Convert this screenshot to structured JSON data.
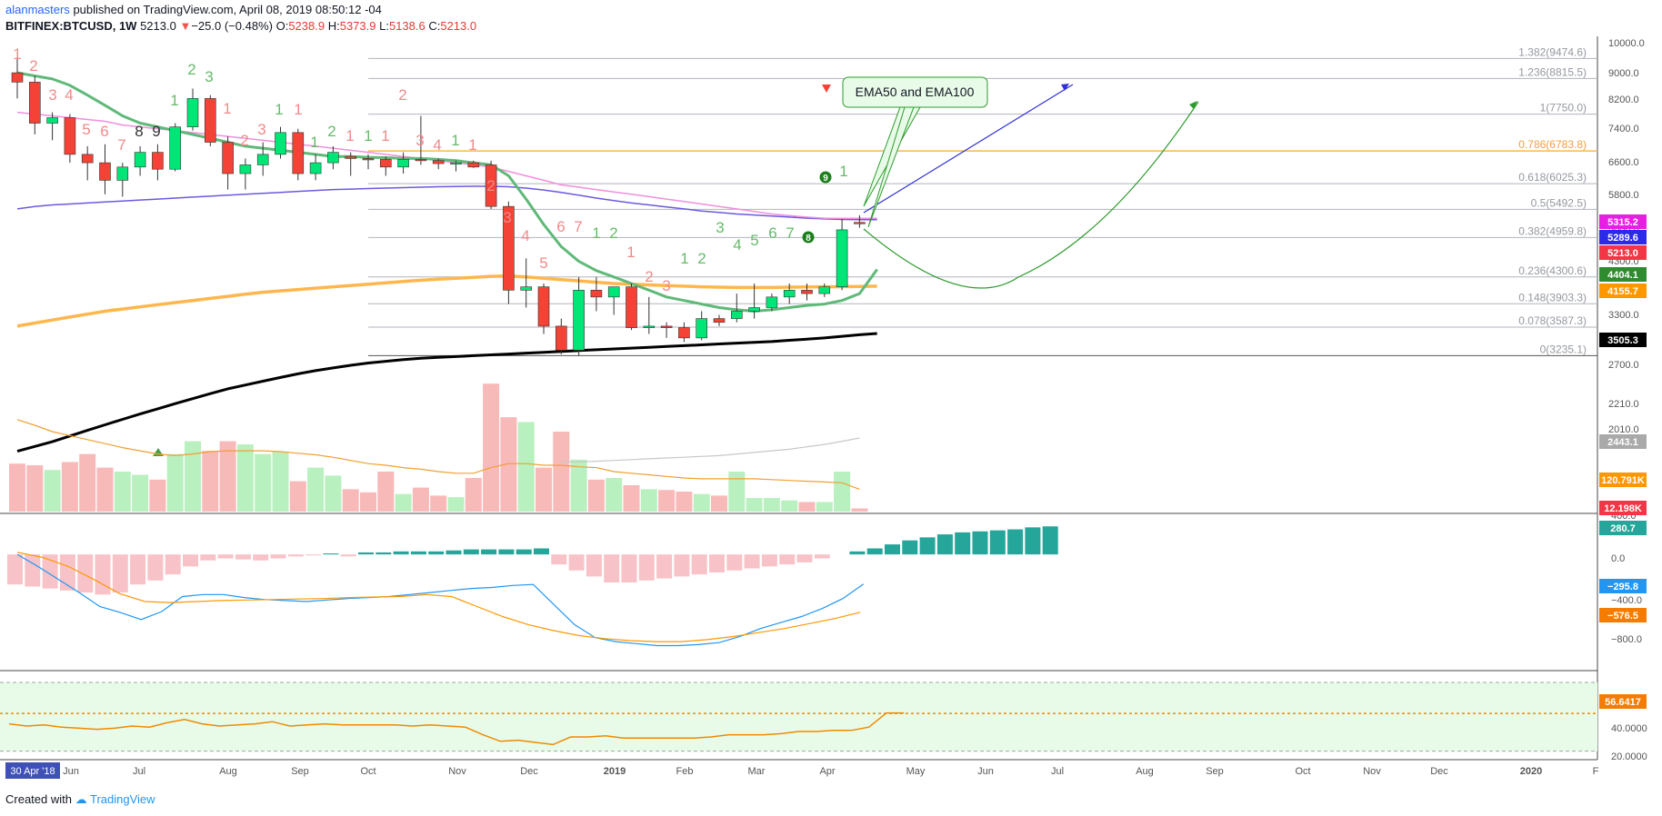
{
  "header": {
    "line1_user": "alanmasters",
    "line1_rest": "published on TradingView.com, April 08, 2019 08:50:12 -04",
    "symbol": "BITFINEX:BTCUSD, 1W",
    "last": "5213.0",
    "change_arrow": "▼",
    "change": "−25.0 (−0.48%)",
    "o_label": "O:",
    "o_val": "5238.9",
    "h_label": "H:",
    "h_val": "5373.9",
    "l_label": "L:",
    "l_val": "5138.6",
    "c_label": "C:",
    "c_val": "5213.0"
  },
  "footer": {
    "created_with": "Created with",
    "brand": "TradingView"
  },
  "colors": {
    "up": "#00e676",
    "down": "#f44336",
    "ema_green": "#5fb978",
    "ema_pink": "#f08fdc",
    "ema_blue": "#6a5ae0",
    "ema_orange": "#ffb74d",
    "ema_black": "#000000",
    "fib_gray": "#b2b5be",
    "fib_orange": "#ffb74d",
    "macd_blue": "#2196f3",
    "macd_signal": "#ff9800",
    "rsi_line": "#ef8a00",
    "rsi_bg": "#e8fbe8"
  },
  "annotation": {
    "callout_text": "EMA50 and EMA100"
  },
  "x_axis": {
    "date_badge": "30 Apr '18",
    "labels": [
      "Jun",
      "Jul",
      "Aug",
      "Sep",
      "Oct",
      "Nov",
      "Dec",
      "2019",
      "Feb",
      "Mar",
      "Apr",
      "May",
      "Jun",
      "Jul",
      "Aug",
      "Sep",
      "Oct",
      "Nov",
      "Dec",
      "2020",
      "F"
    ]
  },
  "chart_data": [
    {
      "type": "candlestick",
      "title": "BITFINEX:BTCUSD, 1W",
      "y_scale": "log",
      "y_range": [
        1890,
        10000
      ],
      "y_ticks": [
        "10000.0",
        "9000.0",
        "8200.0",
        "7400.0",
        "6600.0",
        "5800.0",
        "5000.0",
        "4300.0",
        "3700.0",
        "3300.0",
        "3000.0",
        "2700.0",
        "2210.0",
        "2010.0"
      ],
      "price_tags": [
        {
          "label": "5315.2",
          "color": "#e91ee3"
        },
        {
          "label": "5289.6",
          "color": "#2a2ae8"
        },
        {
          "label": "5213.0",
          "color": "#f23645"
        },
        {
          "label": "4404.1",
          "color": "#2e8b2e"
        },
        {
          "label": "4155.7",
          "color": "#ff9800"
        },
        {
          "label": "3505.3",
          "color": "#000000"
        },
        {
          "label": "2443.1",
          "color": "#a9a9a9"
        },
        {
          "label": "120.791K",
          "color": "#ff9800"
        },
        {
          "label": "12.198K",
          "color": "#f23645"
        }
      ],
      "fib_levels": [
        {
          "label": "1.382(9474.6)",
          "value": 9474.6
        },
        {
          "label": "1.236(8815.5)",
          "value": 8815.5
        },
        {
          "label": "1(7750.0)",
          "value": 7750.0
        },
        {
          "label": "0.786(6783.8)",
          "value": 6783.8
        },
        {
          "label": "0.618(6025.3)",
          "value": 6025.3
        },
        {
          "label": "0.5(5492.5)",
          "value": 5492.5
        },
        {
          "label": "0.382(4959.8)",
          "value": 4959.8
        },
        {
          "label": "0.236(4300.6)",
          "value": 4300.6
        },
        {
          "label": "0.148(3903.3)",
          "value": 3903.3
        },
        {
          "label": "0.078(3587.3)",
          "value": 3587.3
        },
        {
          "label": "0(3235.1)",
          "value": 3235.1
        }
      ],
      "candles": [
        {
          "o": 9000,
          "h": 9500,
          "l": 8200,
          "c": 8700
        },
        {
          "o": 8700,
          "h": 8900,
          "l": 7200,
          "c": 7500
        },
        {
          "o": 7500,
          "h": 7800,
          "l": 7050,
          "c": 7650
        },
        {
          "o": 7650,
          "h": 7750,
          "l": 6500,
          "c": 6700
        },
        {
          "o": 6700,
          "h": 6900,
          "l": 6100,
          "c": 6500
        },
        {
          "o": 6500,
          "h": 6950,
          "l": 5800,
          "c": 6100
        },
        {
          "o": 6100,
          "h": 6500,
          "l": 5750,
          "c": 6400
        },
        {
          "o": 6400,
          "h": 6900,
          "l": 6200,
          "c": 6750
        },
        {
          "o": 6750,
          "h": 6950,
          "l": 6100,
          "c": 6350
        },
        {
          "o": 6350,
          "h": 7500,
          "l": 6300,
          "c": 7400
        },
        {
          "o": 7400,
          "h": 8500,
          "l": 7300,
          "c": 8200
        },
        {
          "o": 8200,
          "h": 8300,
          "l": 6900,
          "c": 7000
        },
        {
          "o": 7000,
          "h": 7150,
          "l": 5900,
          "c": 6250
        },
        {
          "o": 6250,
          "h": 6600,
          "l": 5900,
          "c": 6450
        },
        {
          "o": 6450,
          "h": 7000,
          "l": 6200,
          "c": 6700
        },
        {
          "o": 6700,
          "h": 7400,
          "l": 6600,
          "c": 7250
        },
        {
          "o": 7250,
          "h": 7350,
          "l": 6100,
          "c": 6250
        },
        {
          "o": 6250,
          "h": 6700,
          "l": 6100,
          "c": 6500
        },
        {
          "o": 6500,
          "h": 6900,
          "l": 6350,
          "c": 6750
        },
        {
          "o": 6650,
          "h": 6750,
          "l": 6200,
          "c": 6600
        },
        {
          "o": 6600,
          "h": 6700,
          "l": 6350,
          "c": 6580
        },
        {
          "o": 6580,
          "h": 6650,
          "l": 6200,
          "c": 6400
        },
        {
          "o": 6400,
          "h": 6750,
          "l": 6250,
          "c": 6580
        },
        {
          "o": 6580,
          "h": 7700,
          "l": 6450,
          "c": 6550
        },
        {
          "o": 6550,
          "h": 6600,
          "l": 6350,
          "c": 6480
        },
        {
          "o": 6480,
          "h": 6550,
          "l": 6300,
          "c": 6500
        },
        {
          "o": 6500,
          "h": 6550,
          "l": 6380,
          "c": 6400
        },
        {
          "o": 6450,
          "h": 6550,
          "l": 5500,
          "c": 5550
        },
        {
          "o": 5550,
          "h": 5650,
          "l": 3900,
          "c": 4100
        },
        {
          "o": 4100,
          "h": 4600,
          "l": 3850,
          "c": 4150
        },
        {
          "o": 4150,
          "h": 4200,
          "l": 3500,
          "c": 3600
        },
        {
          "o": 3600,
          "h": 3700,
          "l": 3250,
          "c": 3300
        },
        {
          "o": 3300,
          "h": 4300,
          "l": 3236,
          "c": 4100
        },
        {
          "o": 4100,
          "h": 4300,
          "l": 3800,
          "c": 4000
        },
        {
          "o": 4000,
          "h": 4150,
          "l": 3750,
          "c": 4150
        },
        {
          "o": 4150,
          "h": 4200,
          "l": 3550,
          "c": 3580
        },
        {
          "o": 3580,
          "h": 4000,
          "l": 3500,
          "c": 3600
        },
        {
          "o": 3600,
          "h": 3650,
          "l": 3450,
          "c": 3580
        },
        {
          "o": 3580,
          "h": 3650,
          "l": 3400,
          "c": 3450
        },
        {
          "o": 3450,
          "h": 3800,
          "l": 3420,
          "c": 3700
        },
        {
          "o": 3700,
          "h": 3750,
          "l": 3600,
          "c": 3650
        },
        {
          "o": 3700,
          "h": 4050,
          "l": 3650,
          "c": 3800
        },
        {
          "o": 3800,
          "h": 4200,
          "l": 3700,
          "c": 3850
        },
        {
          "o": 3850,
          "h": 4050,
          "l": 3800,
          "c": 4000
        },
        {
          "o": 4000,
          "h": 4200,
          "l": 3900,
          "c": 4100
        },
        {
          "o": 4100,
          "h": 4200,
          "l": 3950,
          "c": 4050
        },
        {
          "o": 4050,
          "h": 4200,
          "l": 4000,
          "c": 4150
        },
        {
          "o": 4150,
          "h": 5300,
          "l": 4100,
          "c": 5100
        },
        {
          "o": 5238.9,
          "h": 5373.9,
          "l": 5138.6,
          "c": 5213.0
        }
      ],
      "ema_green": [
        9000,
        8900,
        8800,
        8600,
        8300,
        8000,
        7700,
        7500,
        7400,
        7300,
        7200,
        7100,
        7000,
        6900,
        6850,
        6800,
        6750,
        6700,
        6650,
        6650,
        6630,
        6620,
        6600,
        6600,
        6580,
        6550,
        6500,
        6450,
        6200,
        5700,
        5200,
        4800,
        4550,
        4400,
        4300,
        4200,
        4100,
        4000,
        3950,
        3900,
        3850,
        3820,
        3800,
        3820,
        3850,
        3880,
        3900,
        3950,
        4050,
        4420
      ],
      "ema_pink": [
        7800,
        7750,
        7700,
        7650,
        7600,
        7550,
        7450,
        7400,
        7350,
        7300,
        7250,
        7200,
        7150,
        7100,
        7050,
        7000,
        6950,
        6900,
        6850,
        6800,
        6750,
        6700,
        6650,
        6600,
        6550,
        6500,
        6450,
        6400,
        6300,
        6200,
        6100,
        6000,
        5950,
        5900,
        5850,
        5800,
        5750,
        5700,
        5650,
        5600,
        5550,
        5500,
        5450,
        5400,
        5370,
        5340,
        5320,
        5315,
        5315,
        5315
      ],
      "ema_blue": [
        5500,
        5550,
        5580,
        5600,
        5620,
        5640,
        5660,
        5680,
        5700,
        5720,
        5740,
        5760,
        5780,
        5800,
        5820,
        5840,
        5860,
        5880,
        5900,
        5910,
        5920,
        5930,
        5940,
        5950,
        5960,
        5965,
        5970,
        5970,
        5960,
        5930,
        5890,
        5840,
        5780,
        5720,
        5670,
        5620,
        5580,
        5540,
        5500,
        5460,
        5430,
        5400,
        5380,
        5360,
        5340,
        5320,
        5305,
        5295,
        5290,
        5290
      ],
      "ema_orange": [
        3600,
        3640,
        3680,
        3720,
        3760,
        3800,
        3830,
        3860,
        3890,
        3920,
        3950,
        3980,
        4010,
        4040,
        4070,
        4090,
        4110,
        4130,
        4150,
        4170,
        4190,
        4210,
        4230,
        4250,
        4265,
        4280,
        4295,
        4310,
        4315,
        4300,
        4280,
        4260,
        4240,
        4220,
        4200,
        4190,
        4180,
        4170,
        4160,
        4150,
        4145,
        4140,
        4140,
        4140,
        4145,
        4148,
        4150,
        4152,
        4155,
        4160
      ],
      "ema_black": [
        2290,
        2330,
        2370,
        2420,
        2470,
        2520,
        2570,
        2620,
        2670,
        2720,
        2770,
        2820,
        2870,
        2910,
        2950,
        2990,
        3030,
        3065,
        3095,
        3125,
        3150,
        3170,
        3190,
        3205,
        3215,
        3225,
        3235,
        3245,
        3255,
        3265,
        3275,
        3285,
        3295,
        3305,
        3315,
        3325,
        3335,
        3345,
        3355,
        3365,
        3375,
        3385,
        3395,
        3405,
        3420,
        3435,
        3450,
        3470,
        3490,
        3505
      ]
    },
    {
      "type": "bar",
      "title": "Volume",
      "values": [
        0.6,
        0.58,
        0.52,
        0.62,
        0.72,
        0.55,
        0.5,
        0.46,
        0.4,
        0.72,
        0.88,
        0.76,
        0.88,
        0.84,
        0.72,
        0.75,
        0.38,
        0.55,
        0.45,
        0.28,
        0.24,
        0.5,
        0.22,
        0.3,
        0.2,
        0.18,
        0.42,
        1.6,
        1.18,
        1.12,
        0.55,
        1.0,
        0.65,
        0.4,
        0.42,
        0.33,
        0.28,
        0.27,
        0.25,
        0.22,
        0.2,
        0.5,
        0.17,
        0.17,
        0.14,
        0.12,
        0.12,
        0.5,
        0.04
      ],
      "ma_gray": [
        null,
        null,
        null,
        null,
        null,
        null,
        null,
        null,
        null,
        null,
        null,
        null,
        null,
        null,
        null,
        null,
        null,
        null,
        null,
        null,
        null,
        null,
        null,
        null,
        null,
        null,
        null,
        null,
        null,
        null,
        null,
        0.62,
        0.62,
        0.63,
        0.64,
        0.65,
        0.66,
        0.67,
        0.68,
        0.69,
        0.7,
        0.72,
        0.74,
        0.76,
        0.78,
        0.81,
        0.84,
        0.88,
        0.92
      ],
      "ma_orange": [
        1.15,
        1.08,
        1.0,
        0.95,
        0.9,
        0.85,
        0.8,
        0.76,
        0.72,
        0.7,
        0.72,
        0.75,
        0.76,
        0.76,
        0.76,
        0.75,
        0.73,
        0.71,
        0.68,
        0.64,
        0.6,
        0.58,
        0.55,
        0.53,
        0.5,
        0.48,
        0.48,
        0.55,
        0.6,
        0.6,
        0.58,
        0.58,
        0.56,
        0.55,
        0.5,
        0.48,
        0.46,
        0.44,
        0.42,
        0.41,
        0.41,
        0.41,
        0.41,
        0.4,
        0.39,
        0.38,
        0.37,
        0.36,
        0.28
      ]
    },
    {
      "type": "bar",
      "title": "MACD",
      "y_range": [
        -1150,
        400
      ],
      "y_ticks": [
        "400.0",
        "0.0",
        "−400.0",
        "−800.0"
      ],
      "histogram": [
        -300,
        -320,
        -340,
        -360,
        -380,
        -400,
        -380,
        -300,
        -260,
        -200,
        -120,
        -60,
        -40,
        -50,
        -60,
        -40,
        -20,
        -10,
        10,
        -20,
        20,
        20,
        30,
        30,
        30,
        40,
        50,
        50,
        50,
        50,
        60,
        -100,
        -160,
        -220,
        -280,
        -280,
        -260,
        -240,
        -220,
        -200,
        -180,
        -160,
        -140,
        -120,
        -100,
        -80,
        -40,
        0,
        30,
        60,
        100,
        140,
        170,
        200,
        220,
        230,
        240,
        250,
        270,
        280
      ],
      "macd_line": [
        0,
        -120,
        -250,
        -380,
        -520,
        -580,
        -650,
        -570,
        -420,
        -400,
        -400,
        -430,
        -450,
        -460,
        -470,
        -455,
        -440,
        -430,
        -420,
        -400,
        -380,
        -360,
        -340,
        -330,
        -310,
        -300,
        -500,
        -700,
        -830,
        -870,
        -890,
        -910,
        -910,
        -900,
        -880,
        -820,
        -740,
        -680,
        -620,
        -540,
        -440,
        -296
      ],
      "signal_line": [
        20,
        -30,
        -120,
        -250,
        -390,
        -470,
        -480,
        -470,
        -460,
        -455,
        -450,
        -445,
        -440,
        -430,
        -425,
        -420,
        -400,
        -420,
        -520,
        -620,
        -700,
        -760,
        -810,
        -840,
        -860,
        -870,
        -870,
        -850,
        -820,
        -780,
        -740,
        -690,
        -640,
        -577
      ]
    },
    {
      "type": "line",
      "title": "RSI",
      "y_range": [
        15,
        95
      ],
      "y_ticks": [
        "40.0000",
        "20.0000"
      ],
      "current": "56.6417",
      "values": [
        47,
        45,
        46,
        44,
        43,
        42,
        43,
        45,
        44,
        48,
        51,
        47,
        45,
        46,
        47,
        49,
        45,
        46,
        47,
        46,
        46,
        46,
        46,
        45,
        46,
        45,
        44,
        37,
        31,
        32,
        30,
        28,
        35,
        35,
        36,
        34,
        34,
        34,
        34,
        34,
        35,
        37,
        37,
        37,
        38,
        40,
        40,
        41,
        41,
        44,
        57,
        57
      ]
    }
  ]
}
